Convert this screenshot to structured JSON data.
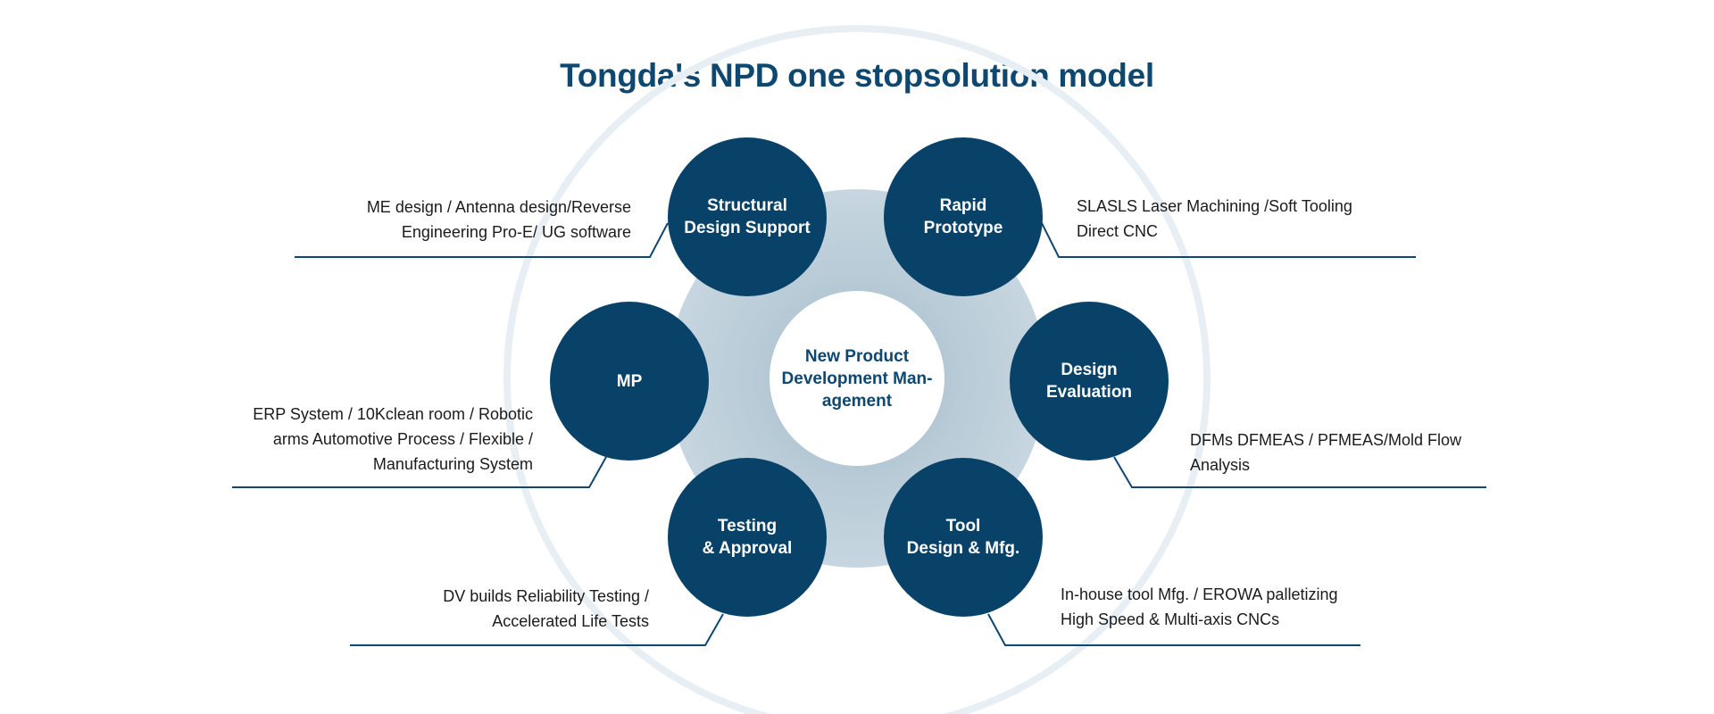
{
  "title": "Tongda's NPD one stopsolution model",
  "colors": {
    "node": "#084269",
    "title": "#0e4770",
    "hub": "#bfd0db",
    "ring": "#e6eef3",
    "line": "#0e4770"
  },
  "center": {
    "label": "New Product\nDevelopment Man-\nagement"
  },
  "nodes": {
    "structural": {
      "label": "Structural\nDesign Support",
      "description": "ME design / Antenna design/Reverse\nEngineering Pro-E/ UG software"
    },
    "rapid": {
      "label": "Rapid\nPrototype",
      "description": "SLASLS Laser Machining /Soft Tooling\nDirect CNC"
    },
    "mp": {
      "label": "MP",
      "description": "ERP System / 10Kclean room / Robotic\narms Automotive Process / Flexible /\nManufacturing System"
    },
    "design_eval": {
      "label": "Design\nEvaluation",
      "description": "DFMs DFMEAS / PFMEAS/Mold Flow\nAnalysis"
    },
    "testing": {
      "label": "Testing\n& Approval",
      "description": "DV builds Reliability Testing /\nAccelerated Life Tests"
    },
    "tool": {
      "label": "Tool\nDesign & Mfg.",
      "description": "In-house tool Mfg. / EROWA palletizing\nHigh Speed & Multi-axis CNCs"
    }
  }
}
